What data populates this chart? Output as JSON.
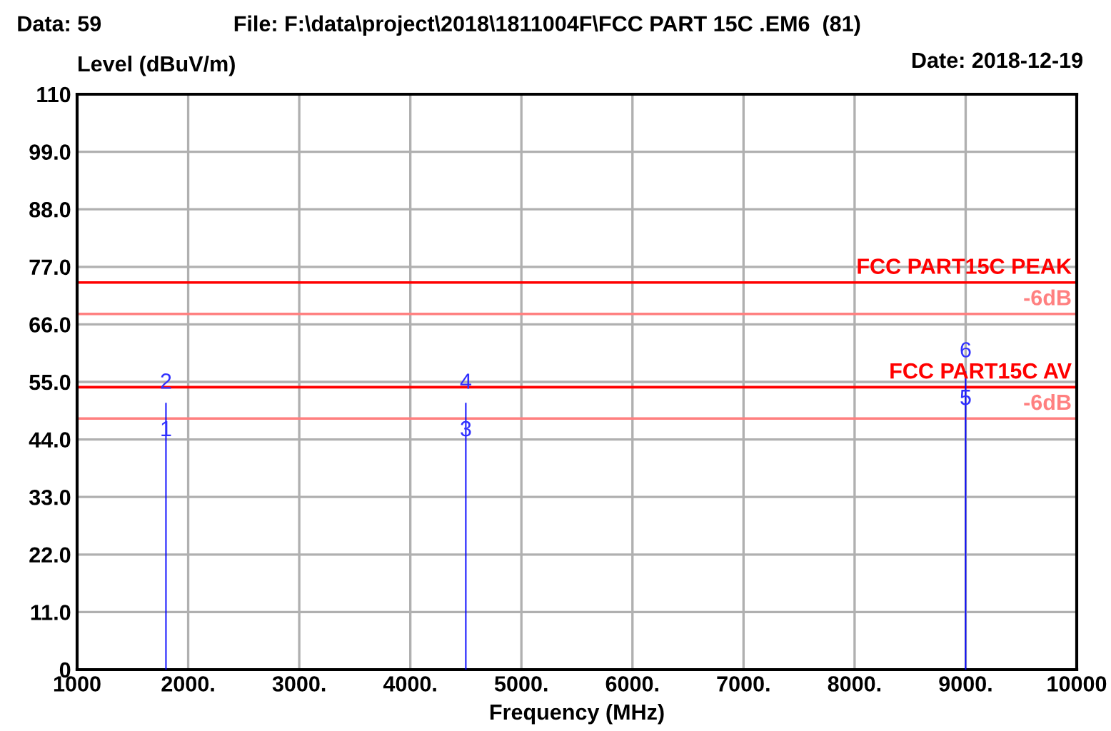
{
  "chart_data": {
    "type": "bar",
    "title": "File: F:\\data\\project\\2018\\1811004F\\FCC PART 15C .EM6  (81)",
    "xlabel": "Frequency (MHz)",
    "ylabel": "Level (dBuV/m)",
    "x": [
      1800,
      4500,
      9000
    ],
    "series": [
      {
        "color": "#0000ff",
        "values": [
          51,
          51,
          57
        ]
      }
    ],
    "xlim": [
      1000,
      10000
    ],
    "xticks": [
      1000,
      {
        "value": 2000,
        "label": "2000."
      },
      {
        "value": 3000,
        "label": "3000."
      },
      {
        "value": 4000,
        "label": "4000."
      },
      {
        "value": 5000,
        "label": "5000."
      },
      {
        "value": 6000,
        "label": "6000."
      },
      {
        "value": 7000,
        "label": "7000."
      },
      {
        "value": 8000,
        "label": "8000."
      },
      {
        "value": 9000,
        "label": "9000."
      },
      10000
    ],
    "ylim": [
      0,
      110
    ],
    "yticks": [
      0,
      {
        "value": 11,
        "label": "11.0"
      },
      {
        "value": 22,
        "label": "22.0"
      },
      {
        "value": 33,
        "label": "33.0"
      },
      {
        "value": 44,
        "label": "44.0"
      },
      {
        "value": 55,
        "label": "55.0"
      },
      {
        "value": 66,
        "label": "66.0"
      },
      {
        "value": 77,
        "label": "77.0"
      },
      {
        "value": 88,
        "label": "88.0"
      },
      {
        "value": 99,
        "label": "99.0"
      },
      110
    ],
    "grid": true,
    "ref_lines": [
      {
        "axis": "y",
        "value": 74,
        "label": "FCC PART15C PEAK",
        "color": "#ff0000"
      },
      {
        "axis": "y",
        "value": 68,
        "label": "-6dB",
        "color": "#ff8080"
      },
      {
        "axis": "y",
        "value": 54,
        "label": "FCC PART15C AV",
        "color": "#ff0000"
      },
      {
        "axis": "y",
        "value": 48,
        "label": "-6dB",
        "color": "#ff8080"
      }
    ],
    "annotations": [
      "Data: 59",
      "Date: 2018-12-19",
      {
        "text": "1",
        "x": 1800,
        "y": 51
      },
      {
        "text": "2",
        "x": 1800,
        "y": 51
      },
      {
        "text": "3",
        "x": 4500,
        "y": 51
      },
      {
        "text": "4",
        "x": 4500,
        "y": 51
      },
      {
        "text": "5",
        "x": 9000,
        "y": 57
      },
      {
        "text": "6",
        "x": 9000,
        "y": 57
      }
    ]
  }
}
